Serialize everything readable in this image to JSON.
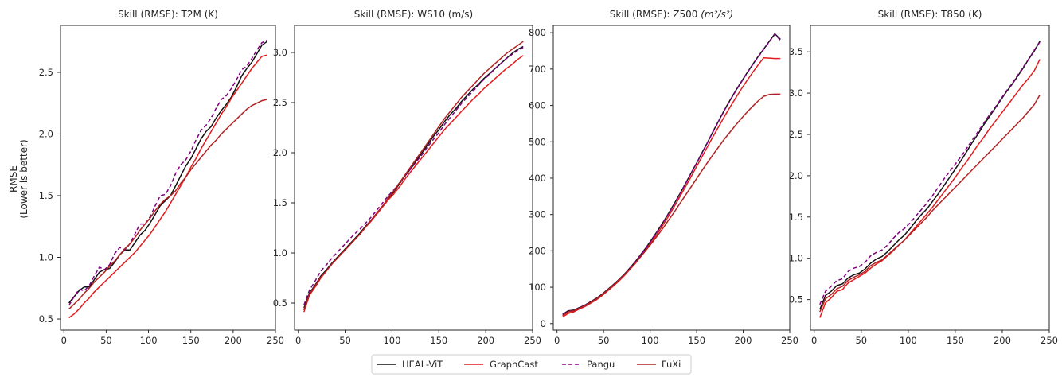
{
  "figure": {
    "ylabel_line1": "RMSE",
    "ylabel_line2": "(Lower is better)"
  },
  "legend": {
    "items": [
      {
        "label": "HEAL-ViT",
        "color": "#111111",
        "dash": "solid"
      },
      {
        "label": "GraphCast",
        "color": "#e31a1c",
        "dash": "solid"
      },
      {
        "label": "Pangu",
        "color": "#800080",
        "dash": "dashed"
      },
      {
        "label": "FuXi",
        "color": "#b22222",
        "dash": "solid"
      }
    ]
  },
  "chart_data": [
    {
      "type": "line",
      "title": "Skill (RMSE): T2M (K)",
      "xlabel": "",
      "ylabel": "RMSE (Lower is better)",
      "xlim": [
        -4,
        250
      ],
      "ylim": [
        0.41,
        2.88
      ],
      "xticks": [
        0,
        50,
        100,
        150,
        200,
        250
      ],
      "yticks": [
        0.5,
        1.0,
        1.5,
        2.0,
        2.5
      ],
      "ytick_labels": [
        "0.5",
        "1.0",
        "1.5",
        "2.0",
        "2.5"
      ],
      "x": [
        6,
        12,
        18,
        24,
        30,
        36,
        42,
        48,
        54,
        60,
        66,
        72,
        78,
        84,
        90,
        96,
        102,
        108,
        114,
        120,
        126,
        132,
        138,
        144,
        150,
        156,
        162,
        168,
        174,
        180,
        186,
        192,
        198,
        204,
        210,
        216,
        222,
        228,
        234,
        240
      ],
      "series": [
        {
          "name": "HEAL-ViT",
          "values": [
            0.63,
            0.68,
            0.73,
            0.76,
            0.76,
            0.82,
            0.88,
            0.9,
            0.91,
            0.96,
            1.02,
            1.06,
            1.06,
            1.12,
            1.18,
            1.22,
            1.28,
            1.35,
            1.42,
            1.46,
            1.5,
            1.58,
            1.66,
            1.74,
            1.8,
            1.88,
            1.96,
            2.02,
            2.06,
            2.13,
            2.19,
            2.24,
            2.3,
            2.38,
            2.47,
            2.53,
            2.58,
            2.65,
            2.72,
            2.75
          ]
        },
        {
          "name": "GraphCast",
          "values": [
            0.51,
            0.54,
            0.58,
            0.63,
            0.67,
            0.72,
            0.76,
            0.8,
            0.84,
            0.88,
            0.92,
            0.96,
            1.0,
            1.04,
            1.09,
            1.14,
            1.19,
            1.25,
            1.31,
            1.37,
            1.44,
            1.51,
            1.58,
            1.65,
            1.73,
            1.8,
            1.88,
            1.95,
            2.02,
            2.09,
            2.16,
            2.22,
            2.29,
            2.35,
            2.41,
            2.47,
            2.53,
            2.58,
            2.63,
            2.64
          ]
        },
        {
          "name": "Pangu",
          "values": [
            0.61,
            0.68,
            0.74,
            0.73,
            0.77,
            0.85,
            0.92,
            0.9,
            0.94,
            1.03,
            1.08,
            1.06,
            1.11,
            1.19,
            1.27,
            1.27,
            1.33,
            1.42,
            1.5,
            1.51,
            1.58,
            1.68,
            1.75,
            1.79,
            1.86,
            1.95,
            2.03,
            2.07,
            2.13,
            2.21,
            2.28,
            2.31,
            2.37,
            2.44,
            2.52,
            2.55,
            2.61,
            2.68,
            2.74,
            2.76
          ]
        },
        {
          "name": "FuXi",
          "values": [
            0.58,
            0.62,
            0.66,
            0.71,
            0.75,
            0.8,
            0.84,
            0.88,
            0.93,
            0.97,
            1.02,
            1.07,
            1.11,
            1.16,
            1.22,
            1.27,
            1.32,
            1.38,
            1.43,
            1.47,
            1.5,
            1.54,
            1.6,
            1.65,
            1.71,
            1.76,
            1.81,
            1.86,
            1.91,
            1.95,
            2.0,
            2.04,
            2.08,
            2.12,
            2.16,
            2.2,
            2.23,
            2.25,
            2.27,
            2.28
          ]
        }
      ]
    },
    {
      "type": "line",
      "title": "Skill (RMSE): WS10 (m/s)",
      "xlabel": "",
      "ylabel": "",
      "xlim": [
        -4,
        250
      ],
      "ylim": [
        0.23,
        3.27
      ],
      "xticks": [
        0,
        50,
        100,
        150,
        200,
        250
      ],
      "yticks": [
        0.5,
        1.0,
        1.5,
        2.0,
        2.5,
        3.0
      ],
      "ytick_labels": [
        "0.5",
        "1.0",
        "1.5",
        "2.0",
        "2.5",
        "3.0"
      ],
      "x": [
        6,
        12,
        18,
        24,
        30,
        36,
        42,
        48,
        54,
        60,
        66,
        72,
        78,
        84,
        90,
        96,
        102,
        108,
        114,
        120,
        126,
        132,
        138,
        144,
        150,
        156,
        162,
        168,
        174,
        180,
        186,
        192,
        198,
        204,
        210,
        216,
        222,
        228,
        234,
        240
      ],
      "series": [
        {
          "name": "HEAL-ViT",
          "values": [
            0.45,
            0.6,
            0.68,
            0.77,
            0.83,
            0.9,
            0.96,
            1.02,
            1.08,
            1.14,
            1.2,
            1.27,
            1.33,
            1.4,
            1.47,
            1.54,
            1.61,
            1.69,
            1.77,
            1.84,
            1.92,
            2.0,
            2.08,
            2.16,
            2.23,
            2.31,
            2.38,
            2.44,
            2.51,
            2.57,
            2.63,
            2.68,
            2.74,
            2.79,
            2.84,
            2.89,
            2.94,
            2.99,
            3.03,
            3.06
          ]
        },
        {
          "name": "GraphCast",
          "values": [
            0.41,
            0.58,
            0.66,
            0.75,
            0.82,
            0.89,
            0.95,
            1.01,
            1.07,
            1.13,
            1.19,
            1.26,
            1.32,
            1.39,
            1.46,
            1.53,
            1.59,
            1.66,
            1.74,
            1.81,
            1.88,
            1.95,
            2.02,
            2.09,
            2.16,
            2.23,
            2.29,
            2.35,
            2.41,
            2.47,
            2.53,
            2.58,
            2.64,
            2.69,
            2.74,
            2.79,
            2.84,
            2.88,
            2.93,
            2.97
          ]
        },
        {
          "name": "Pangu",
          "values": [
            0.48,
            0.63,
            0.72,
            0.82,
            0.88,
            0.95,
            1.01,
            1.07,
            1.13,
            1.19,
            1.24,
            1.3,
            1.36,
            1.43,
            1.5,
            1.57,
            1.63,
            1.7,
            1.77,
            1.84,
            1.91,
            1.98,
            2.06,
            2.13,
            2.2,
            2.28,
            2.35,
            2.42,
            2.49,
            2.55,
            2.61,
            2.67,
            2.73,
            2.78,
            2.84,
            2.89,
            2.94,
            2.98,
            3.02,
            3.05
          ]
        },
        {
          "name": "FuXi",
          "values": [
            0.43,
            0.59,
            0.67,
            0.76,
            0.82,
            0.89,
            0.95,
            1.01,
            1.07,
            1.13,
            1.19,
            1.26,
            1.33,
            1.4,
            1.47,
            1.55,
            1.62,
            1.7,
            1.78,
            1.86,
            1.94,
            2.02,
            2.1,
            2.18,
            2.26,
            2.34,
            2.41,
            2.48,
            2.55,
            2.61,
            2.67,
            2.73,
            2.79,
            2.84,
            2.89,
            2.94,
            2.99,
            3.03,
            3.07,
            3.11
          ]
        }
      ]
    },
    {
      "type": "line",
      "title": "Skill (RMSE): Z500",
      "title_unit": "m²/s²",
      "xlabel": "",
      "ylabel": "",
      "xlim": [
        -4,
        250
      ],
      "ylim": [
        -18,
        820
      ],
      "xticks": [
        0,
        50,
        100,
        150,
        200,
        250
      ],
      "yticks": [
        0,
        100,
        200,
        300,
        400,
        500,
        600,
        700,
        800
      ],
      "ytick_labels": [
        "0",
        "100",
        "200",
        "300",
        "400",
        "500",
        "600",
        "700",
        "800"
      ],
      "x": [
        6,
        12,
        18,
        24,
        30,
        36,
        42,
        48,
        54,
        60,
        66,
        72,
        78,
        84,
        90,
        96,
        102,
        108,
        114,
        120,
        126,
        132,
        138,
        144,
        150,
        156,
        162,
        168,
        174,
        180,
        186,
        192,
        198,
        204,
        210,
        216,
        222,
        228,
        234,
        240
      ],
      "series": [
        {
          "name": "HEAL-ViT",
          "values": [
            25,
            35,
            37,
            44,
            51,
            60,
            69,
            80,
            93,
            106,
            120,
            135,
            152,
            170,
            190,
            210,
            232,
            255,
            279,
            304,
            330,
            357,
            385,
            414,
            442,
            471,
            500,
            530,
            559,
            588,
            615,
            641,
            665,
            689,
            712,
            734,
            755,
            776,
            797,
            782
          ]
        },
        {
          "name": "GraphCast",
          "values": [
            18,
            28,
            32,
            40,
            47,
            56,
            65,
            76,
            89,
            102,
            116,
            131,
            148,
            165,
            185,
            205,
            226,
            248,
            272,
            296,
            322,
            349,
            376,
            404,
            432,
            460,
            488,
            516,
            543,
            570,
            596,
            621,
            645,
            668,
            690,
            711,
            731,
            730,
            729,
            729
          ]
        },
        {
          "name": "Pangu",
          "values": [
            24,
            34,
            36,
            43,
            50,
            59,
            68,
            79,
            92,
            105,
            119,
            134,
            151,
            169,
            189,
            209,
            231,
            254,
            278,
            303,
            329,
            356,
            384,
            413,
            441,
            470,
            499,
            529,
            558,
            587,
            614,
            640,
            664,
            688,
            711,
            733,
            754,
            775,
            796,
            779
          ]
        },
        {
          "name": "FuXi",
          "values": [
            22,
            32,
            35,
            42,
            49,
            58,
            67,
            78,
            91,
            104,
            118,
            133,
            149,
            166,
            184,
            203,
            222,
            242,
            263,
            285,
            307,
            330,
            353,
            376,
            399,
            422,
            444,
            466,
            487,
            508,
            527,
            546,
            564,
            581,
            597,
            612,
            625,
            630,
            631,
            631
          ]
        }
      ]
    },
    {
      "type": "line",
      "title": "Skill (RMSE): T850 (K)",
      "xlabel": "",
      "ylabel": "",
      "xlim": [
        -4,
        250
      ],
      "ylim": [
        0.13,
        3.82
      ],
      "xticks": [
        0,
        50,
        100,
        150,
        200,
        250
      ],
      "yticks": [
        0.5,
        1.0,
        1.5,
        2.0,
        2.5,
        3.0,
        3.5
      ],
      "ytick_labels": [
        "0.5",
        "1.0",
        "1.5",
        "2.0",
        "2.5",
        "3.0",
        "3.5"
      ],
      "x": [
        6,
        12,
        18,
        24,
        30,
        36,
        42,
        48,
        54,
        60,
        66,
        72,
        78,
        84,
        90,
        96,
        102,
        108,
        114,
        120,
        126,
        132,
        138,
        144,
        150,
        156,
        162,
        168,
        174,
        180,
        186,
        192,
        198,
        204,
        210,
        216,
        222,
        228,
        234,
        240
      ],
      "series": [
        {
          "name": "HEAL-ViT",
          "values": [
            0.38,
            0.55,
            0.6,
            0.67,
            0.69,
            0.76,
            0.8,
            0.82,
            0.87,
            0.94,
            0.99,
            1.02,
            1.08,
            1.15,
            1.22,
            1.28,
            1.36,
            1.45,
            1.53,
            1.6,
            1.69,
            1.78,
            1.88,
            1.98,
            2.08,
            2.18,
            2.29,
            2.4,
            2.5,
            2.61,
            2.71,
            2.81,
            2.91,
            3.01,
            3.1,
            3.2,
            3.3,
            3.41,
            3.51,
            3.63
          ]
        },
        {
          "name": "GraphCast",
          "values": [
            0.28,
            0.46,
            0.52,
            0.6,
            0.62,
            0.7,
            0.74,
            0.78,
            0.82,
            0.88,
            0.93,
            0.97,
            1.03,
            1.09,
            1.16,
            1.22,
            1.3,
            1.38,
            1.46,
            1.54,
            1.62,
            1.71,
            1.8,
            1.89,
            1.98,
            2.08,
            2.17,
            2.27,
            2.37,
            2.46,
            2.56,
            2.65,
            2.74,
            2.83,
            2.92,
            3.01,
            3.1,
            3.18,
            3.27,
            3.41
          ]
        },
        {
          "name": "Pangu",
          "values": [
            0.44,
            0.6,
            0.66,
            0.73,
            0.75,
            0.84,
            0.88,
            0.9,
            0.95,
            1.03,
            1.07,
            1.1,
            1.16,
            1.24,
            1.31,
            1.36,
            1.43,
            1.51,
            1.59,
            1.67,
            1.76,
            1.86,
            1.96,
            2.05,
            2.14,
            2.23,
            2.33,
            2.43,
            2.53,
            2.63,
            2.73,
            2.82,
            2.92,
            3.02,
            3.11,
            3.21,
            3.31,
            3.41,
            3.52,
            3.62
          ]
        },
        {
          "name": "FuXi",
          "values": [
            0.35,
            0.51,
            0.56,
            0.63,
            0.66,
            0.73,
            0.77,
            0.8,
            0.84,
            0.91,
            0.95,
            0.98,
            1.04,
            1.1,
            1.16,
            1.22,
            1.29,
            1.36,
            1.43,
            1.5,
            1.58,
            1.65,
            1.72,
            1.79,
            1.86,
            1.93,
            2.0,
            2.07,
            2.14,
            2.21,
            2.28,
            2.35,
            2.42,
            2.49,
            2.56,
            2.63,
            2.7,
            2.78,
            2.86,
            2.98
          ]
        }
      ]
    }
  ]
}
